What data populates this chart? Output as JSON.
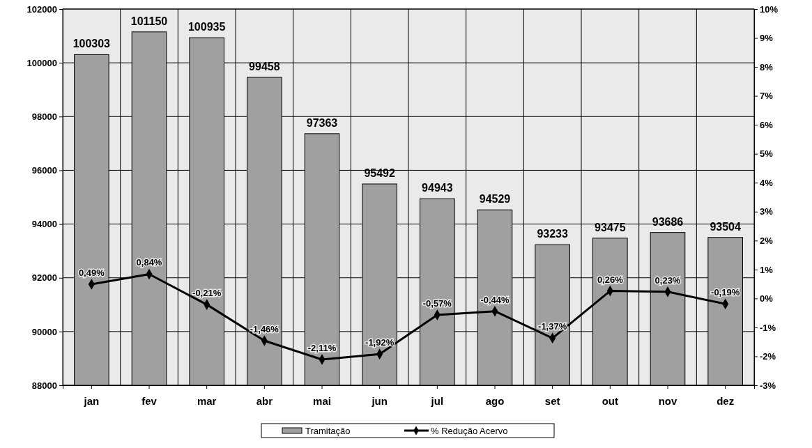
{
  "chart_data": {
    "type": "bar",
    "categories": [
      "jan",
      "fev",
      "mar",
      "abr",
      "mai",
      "jun",
      "jul",
      "ago",
      "set",
      "out",
      "nov",
      "dez"
    ],
    "series": [
      {
        "name": "Tramitação",
        "color": "#a0a0a0",
        "values": [
          100303,
          101150,
          100935,
          99458,
          97363,
          95492,
          94943,
          94529,
          93233,
          93475,
          93686,
          93504
        ],
        "data_labels": true
      },
      {
        "name": "% Redução Acervo",
        "type": "line",
        "axis": "y2",
        "color": "#000000",
        "marker": "diamond",
        "line_style": "solid",
        "values": [
          0.49,
          0.84,
          -0.21,
          -1.46,
          -2.11,
          -1.92,
          -0.57,
          -0.44,
          -1.37,
          0.26,
          0.23,
          -0.19
        ],
        "value_labels": [
          "0,49%",
          "0,84%",
          "-0,21%",
          "-1,46%",
          "-2,11%",
          "-1,92%",
          "-0,57%",
          "-0,44%",
          "-1,37%",
          "0,26%",
          "0,23%",
          "-0,19%"
        ]
      }
    ],
    "ylim": [
      88000,
      102000
    ],
    "yticks": [
      88000,
      90000,
      92000,
      94000,
      96000,
      98000,
      100000,
      102000
    ],
    "y2lim": [
      -3,
      10
    ],
    "y2ticks": [
      {
        "value": -3,
        "label": "-3%"
      },
      {
        "value": -2,
        "label": "-2%"
      },
      {
        "value": -1,
        "label": "-1%"
      },
      {
        "value": 0,
        "label": "0%"
      },
      {
        "value": 1,
        "label": "1%"
      },
      {
        "value": 2,
        "label": "2%"
      },
      {
        "value": 3,
        "label": "3%"
      },
      {
        "value": 4,
        "label": "4%"
      },
      {
        "value": 5,
        "label": "5%"
      },
      {
        "value": 6,
        "label": "6%"
      },
      {
        "value": 7,
        "label": "7%"
      },
      {
        "value": 8,
        "label": "8%"
      },
      {
        "value": 9,
        "label": "9%"
      },
      {
        "value": 10,
        "label": "10%"
      }
    ],
    "grid": true,
    "legend": "bottom"
  }
}
